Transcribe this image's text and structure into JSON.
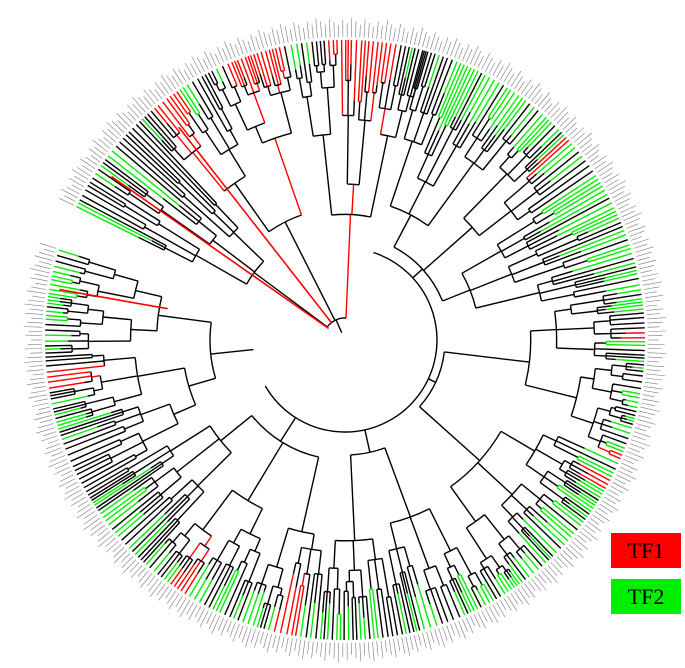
{
  "legend": [
    {
      "label": "TF1",
      "color": "#ff0000"
    },
    {
      "label": "TF2",
      "color": "#00ee00"
    }
  ],
  "colors": {
    "branch_default": "#000000",
    "tip_labels": "#7a7a7a"
  }
}
